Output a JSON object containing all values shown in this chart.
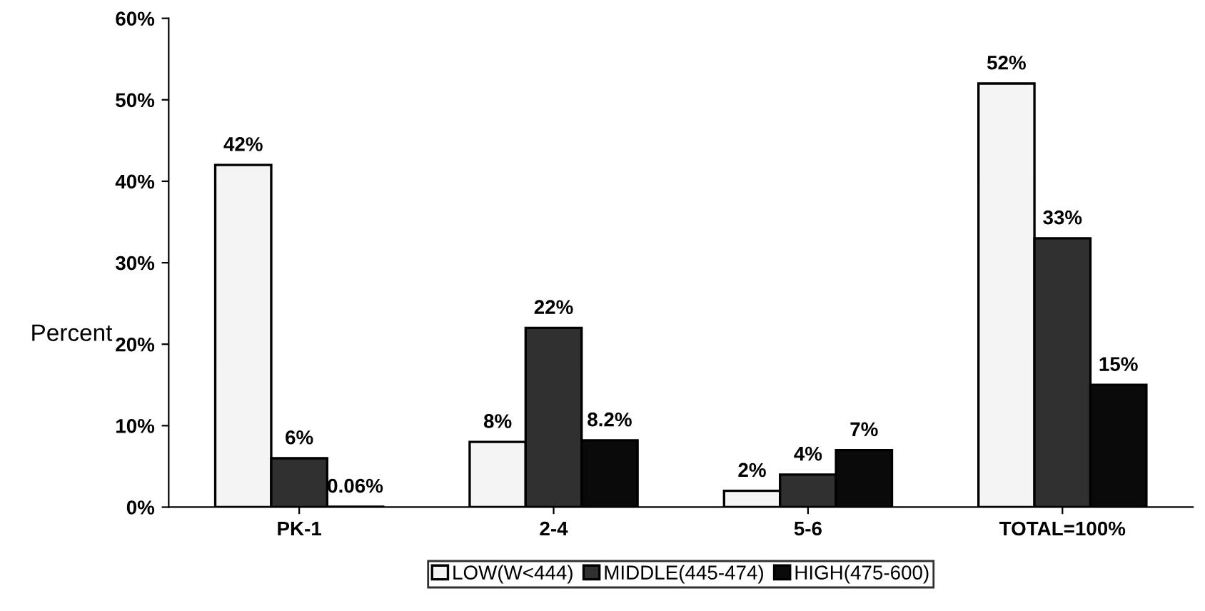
{
  "chart_data": {
    "type": "bar",
    "ylabel": "Percent",
    "categories": [
      "PK-1",
      "2-4",
      "5-6",
      "TOTAL=100%"
    ],
    "series": [
      {
        "name": "LOW(W<444)",
        "color": "#f4f4f4",
        "values": [
          42,
          8,
          2,
          52
        ],
        "value_labels": [
          "42%",
          "8%",
          "2%",
          "52%"
        ]
      },
      {
        "name": "MIDDLE(445-474)",
        "color": "#303030",
        "values": [
          6,
          22,
          4,
          33
        ],
        "value_labels": [
          "6%",
          "22%",
          "4%",
          "33%"
        ]
      },
      {
        "name": "HIGH(475-600)",
        "color": "#0a0a0a",
        "values": [
          0.06,
          8.2,
          7,
          15
        ],
        "value_labels": [
          "0.06%",
          "8.2%",
          "7%",
          "15%"
        ]
      }
    ],
    "ylim": [
      0,
      60
    ],
    "yticks": [
      {
        "value": 0,
        "label": "0%"
      },
      {
        "value": 10,
        "label": "10%"
      },
      {
        "value": 20,
        "label": "20%"
      },
      {
        "value": 30,
        "label": "30%"
      },
      {
        "value": 40,
        "label": "40%"
      },
      {
        "value": 50,
        "label": "50%"
      },
      {
        "value": 60,
        "label": "60%"
      }
    ],
    "grid": false,
    "legend": "bottom"
  }
}
